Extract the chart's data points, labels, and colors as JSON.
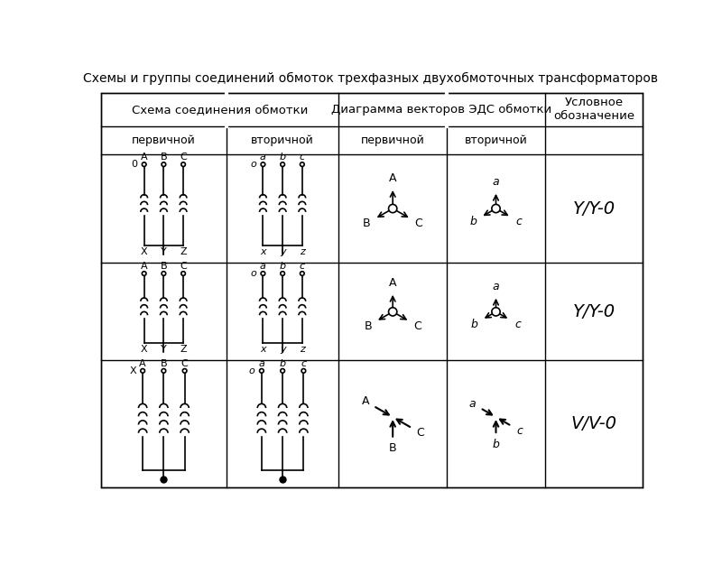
{
  "title": "Схемы и группы соединений обмоток трехфазных двухобмоточных трансформаторов",
  "col_headers": [
    "Схема соединения обмотки",
    "Диаграмма векторов ЭДС обмотки",
    "Условное\nобозначение"
  ],
  "sub_headers": [
    "первичной",
    "вторичной",
    "первичной",
    "вторичной"
  ],
  "row_symbols": [
    "Y/Y-0",
    "Y/Y-0",
    "V/V-0"
  ],
  "bg_color": "#ffffff",
  "line_color": "#000000",
  "text_color": "#000000"
}
